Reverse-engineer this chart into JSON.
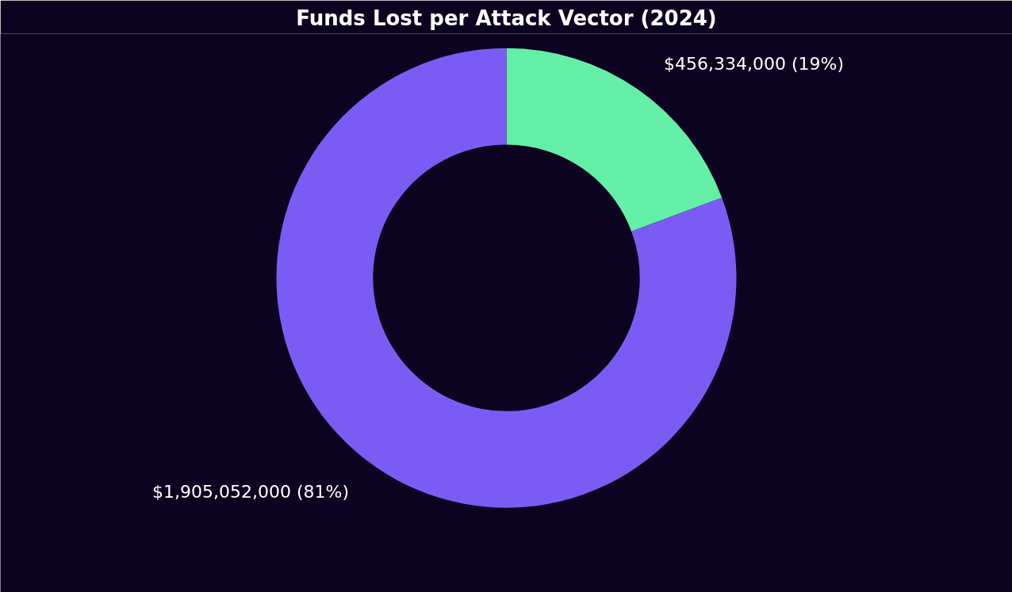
{
  "chart_data": {
    "type": "donut",
    "title": "Funds Lost per Attack Vector (2024)",
    "categories": [
      null,
      null
    ],
    "values": [
      456334000,
      1905052000
    ],
    "colors": [
      "#63f0a6",
      "#7a5cf5"
    ],
    "value_labels": [
      "$456,334,000 (19%)",
      "$1,905,052,000 (81%)"
    ]
  }
}
